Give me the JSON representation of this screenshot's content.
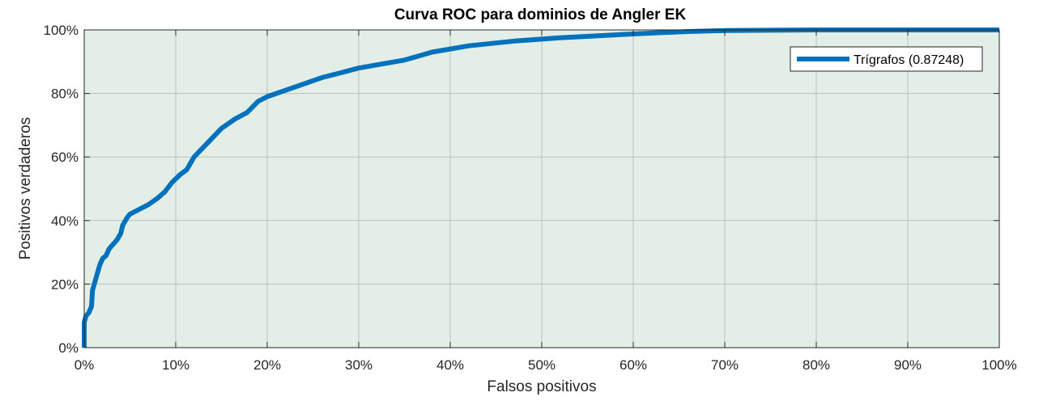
{
  "chart_data": {
    "type": "line",
    "title": "Curva ROC para dominios de Angler EK",
    "xlabel": "Falsos positivos",
    "ylabel": "Positivos verdaderos",
    "xlim": [
      0,
      1
    ],
    "ylim": [
      0,
      1
    ],
    "xticks": [
      0,
      0.1,
      0.2,
      0.3,
      0.4,
      0.5,
      0.6,
      0.7,
      0.8,
      0.9,
      1.0
    ],
    "yticks": [
      0,
      0.2,
      0.4,
      0.6,
      0.8,
      1.0
    ],
    "xtick_labels": [
      "0%",
      "10%",
      "20%",
      "30%",
      "40%",
      "50%",
      "60%",
      "70%",
      "80%",
      "90%",
      "100%"
    ],
    "ytick_labels": [
      "0%",
      "20%",
      "40%",
      "60%",
      "80%",
      "100%"
    ],
    "grid": true,
    "legend_position": "top-right",
    "background_color": "#e3efe6",
    "series": [
      {
        "name": "Trígrafos (0.87248)",
        "color": "#0072bd",
        "x": [
          0,
          0,
          0.002,
          0.005,
          0.008,
          0.009,
          0.011,
          0.014,
          0.017,
          0.02,
          0.024,
          0.027,
          0.03,
          0.033,
          0.036,
          0.04,
          0.042,
          0.047,
          0.05,
          0.06,
          0.07,
          0.08,
          0.088,
          0.096,
          0.105,
          0.112,
          0.12,
          0.135,
          0.15,
          0.165,
          0.178,
          0.19,
          0.2,
          0.22,
          0.24,
          0.26,
          0.28,
          0.3,
          0.32,
          0.35,
          0.38,
          0.42,
          0.47,
          0.52,
          0.57,
          0.62,
          0.66,
          0.7,
          0.75,
          0.8,
          0.9,
          1.0
        ],
        "y": [
          0,
          0.08,
          0.1,
          0.11,
          0.13,
          0.18,
          0.2,
          0.23,
          0.26,
          0.28,
          0.29,
          0.31,
          0.32,
          0.33,
          0.34,
          0.36,
          0.385,
          0.41,
          0.42,
          0.435,
          0.45,
          0.47,
          0.49,
          0.52,
          0.545,
          0.56,
          0.6,
          0.645,
          0.69,
          0.72,
          0.74,
          0.775,
          0.79,
          0.81,
          0.83,
          0.85,
          0.865,
          0.88,
          0.89,
          0.905,
          0.93,
          0.95,
          0.965,
          0.975,
          0.983,
          0.99,
          0.995,
          0.998,
          0.999,
          1.0,
          1.0,
          1.0
        ]
      }
    ]
  }
}
